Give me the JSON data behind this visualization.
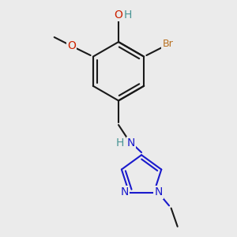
{
  "bg_color": "#ebebeb",
  "bond_color": "#1a1a1a",
  "bond_width": 1.5,
  "atom_colors": {
    "C": "#1a1a1a",
    "H": "#4a9595",
    "O": "#cc2200",
    "Br": "#b87020",
    "N": "#1a1acc"
  },
  "font_size_atom": 10,
  "font_size_small": 8.5
}
